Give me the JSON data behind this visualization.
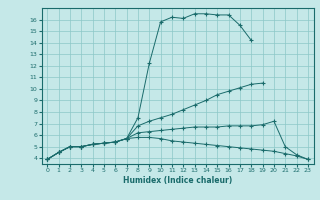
{
  "xlabel": "Humidex (Indice chaleur)",
  "xlim": [
    -0.5,
    23.5
  ],
  "ylim": [
    3.5,
    17
  ],
  "xticks": [
    0,
    1,
    2,
    3,
    4,
    5,
    6,
    7,
    8,
    9,
    10,
    11,
    12,
    13,
    14,
    15,
    16,
    17,
    18,
    19,
    20,
    21,
    22,
    23
  ],
  "yticks": [
    4,
    5,
    6,
    7,
    8,
    9,
    10,
    11,
    12,
    13,
    14,
    15,
    16
  ],
  "line_color": "#1a6b6b",
  "bg_color": "#c5e8e8",
  "grid_color": "#8cc8c8",
  "curves": [
    {
      "x": [
        0,
        1,
        2,
        3,
        4,
        5,
        6,
        7,
        8,
        9,
        10,
        11,
        12,
        13,
        14,
        15,
        16,
        17,
        18
      ],
      "y": [
        3.9,
        4.5,
        5.0,
        5.0,
        5.2,
        5.3,
        5.4,
        5.7,
        7.5,
        12.2,
        15.8,
        16.2,
        16.1,
        16.5,
        16.5,
        16.4,
        16.4,
        15.5,
        14.2
      ]
    },
    {
      "x": [
        0,
        1,
        2,
        3,
        4,
        5,
        6,
        7,
        8,
        9,
        10,
        11,
        12,
        13,
        14,
        15,
        16,
        17,
        18,
        19
      ],
      "y": [
        3.9,
        4.5,
        5.0,
        5.0,
        5.2,
        5.3,
        5.4,
        5.7,
        6.8,
        7.2,
        7.5,
        7.8,
        8.2,
        8.6,
        9.0,
        9.5,
        9.8,
        10.1,
        10.4,
        10.5
      ]
    },
    {
      "x": [
        0,
        1,
        2,
        3,
        4,
        5,
        6,
        7,
        8,
        9,
        10,
        11,
        12,
        13,
        14,
        15,
        16,
        17,
        18,
        19,
        20,
        21,
        22,
        23
      ],
      "y": [
        3.9,
        4.5,
        5.0,
        5.0,
        5.2,
        5.3,
        5.4,
        5.7,
        6.2,
        6.3,
        6.4,
        6.5,
        6.6,
        6.7,
        6.7,
        6.7,
        6.8,
        6.8,
        6.8,
        6.9,
        7.2,
        5.0,
        4.3,
        3.9
      ]
    },
    {
      "x": [
        0,
        1,
        2,
        3,
        4,
        5,
        6,
        7,
        8,
        9,
        10,
        11,
        12,
        13,
        14,
        15,
        16,
        17,
        18,
        19,
        20,
        21,
        22,
        23
      ],
      "y": [
        3.9,
        4.5,
        5.0,
        5.0,
        5.2,
        5.3,
        5.4,
        5.7,
        5.8,
        5.8,
        5.7,
        5.5,
        5.4,
        5.3,
        5.2,
        5.1,
        5.0,
        4.9,
        4.8,
        4.7,
        4.6,
        4.4,
        4.2,
        3.9
      ]
    }
  ]
}
